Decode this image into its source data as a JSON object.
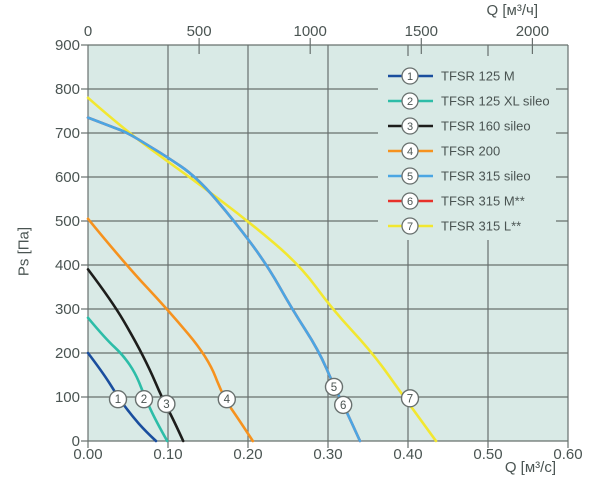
{
  "figure": {
    "background": "#ffffff",
    "plot_background": "#d9eae6",
    "grid_color": "#68706e",
    "text_color": "#4a5452",
    "marker_circle_fill": "#ffffff",
    "marker_circle_stroke": "#68706e"
  },
  "chart_data": {
    "type": "line",
    "title": "",
    "grid": true,
    "legend_position": "top-right",
    "x_bottom": {
      "label": "Q [м³/c]",
      "min": 0,
      "max": 0.6,
      "ticks": [
        "0.00",
        "0.10",
        "0.20",
        "0.30",
        "0.40",
        "0.50",
        "0.60"
      ],
      "tick_values": [
        0,
        0.1,
        0.2,
        0.3,
        0.4,
        0.5,
        0.6
      ]
    },
    "x_top": {
      "label": "Q [м³/ч]",
      "min": 0,
      "max": 2160,
      "ticks": [
        "0",
        "500",
        "1000",
        "1500",
        "2000"
      ],
      "tick_values": [
        0,
        500,
        1000,
        1500,
        2000
      ]
    },
    "y": {
      "label": "Ps [Па]",
      "min": 0,
      "max": 900,
      "ticks": [
        "0",
        "100",
        "200",
        "300",
        "400",
        "500",
        "600",
        "700",
        "800",
        "900"
      ],
      "tick_values": [
        0,
        100,
        200,
        300,
        400,
        500,
        600,
        700,
        800,
        900
      ]
    },
    "series": [
      {
        "number": "1",
        "name": "TFSR 125 M",
        "color": "#1a4e9e",
        "points": [
          [
            0,
            200
          ],
          [
            0.02,
            152
          ],
          [
            0.0375,
            100
          ],
          [
            0.055,
            57
          ],
          [
            0.072,
            22
          ],
          [
            0.085,
            0
          ]
        ],
        "marker_at": [
          0.0375,
          95
        ]
      },
      {
        "number": "2",
        "name": "TFSR 125 XL sileo",
        "color": "#2dbda8",
        "points": [
          [
            0,
            280
          ],
          [
            0.022,
            232
          ],
          [
            0.044,
            195
          ],
          [
            0.06,
            152
          ],
          [
            0.071,
            100
          ],
          [
            0.085,
            45
          ],
          [
            0.099,
            0
          ]
        ],
        "marker_at": [
          0.07,
          95
        ]
      },
      {
        "number": "3",
        "name": "TFSR 160 sileo",
        "color": "#1d1d1b",
        "points": [
          [
            0,
            390
          ],
          [
            0.03,
            318
          ],
          [
            0.059,
            228
          ],
          [
            0.078,
            160
          ],
          [
            0.092,
            100
          ],
          [
            0.107,
            48
          ],
          [
            0.119,
            0
          ]
        ],
        "marker_at": [
          0.098,
          84
        ]
      },
      {
        "number": "4",
        "name": "TFSR 200",
        "color": "#f6921e",
        "points": [
          [
            0,
            505
          ],
          [
            0.045,
            405
          ],
          [
            0.1,
            298
          ],
          [
            0.15,
            190
          ],
          [
            0.169,
            100
          ],
          [
            0.19,
            45
          ],
          [
            0.206,
            0
          ]
        ],
        "marker_at": [
          0.1735,
          95
        ]
      },
      {
        "number": "5",
        "name": "TFSR 315 sileo",
        "color": "#4ba6e3",
        "points": [
          [
            0,
            735
          ],
          [
            0.03,
            714
          ],
          [
            0.05,
            700
          ],
          [
            0.075,
            672
          ],
          [
            0.095,
            650
          ],
          [
            0.136,
            600
          ],
          [
            0.183,
            500
          ],
          [
            0.224,
            400
          ],
          [
            0.255,
            300
          ],
          [
            0.288,
            207
          ],
          [
            0.308,
            123
          ],
          [
            0.32,
            80
          ],
          [
            0.34,
            0
          ]
        ],
        "marker_at": [
          0.3075,
          123
        ]
      },
      {
        "number": "6",
        "name": "TFSR 315 M**",
        "color": "#e8312a",
        "points": [
          [
            0,
            735
          ],
          [
            0.03,
            714
          ],
          [
            0.05,
            700
          ],
          [
            0.075,
            672
          ],
          [
            0.095,
            650
          ],
          [
            0.136,
            600
          ],
          [
            0.183,
            500
          ],
          [
            0.224,
            400
          ],
          [
            0.255,
            300
          ],
          [
            0.288,
            207
          ],
          [
            0.308,
            123
          ],
          [
            0.32,
            80
          ],
          [
            0.34,
            0
          ]
        ],
        "marker_at": [
          0.319,
          82
        ],
        "note": "curve coincides with TFSR 315 sileo and is hidden beneath it"
      },
      {
        "number": "7",
        "name": "TFSR 315 L**",
        "color": "#f2e730",
        "points": [
          [
            0,
            780
          ],
          [
            0.05,
            700
          ],
          [
            0.127,
            600
          ],
          [
            0.2,
            500
          ],
          [
            0.265,
            400
          ],
          [
            0.305,
            300
          ],
          [
            0.356,
            200
          ],
          [
            0.395,
            100
          ],
          [
            0.435,
            0
          ]
        ],
        "marker_at": [
          0.4025,
          97
        ]
      }
    ]
  }
}
